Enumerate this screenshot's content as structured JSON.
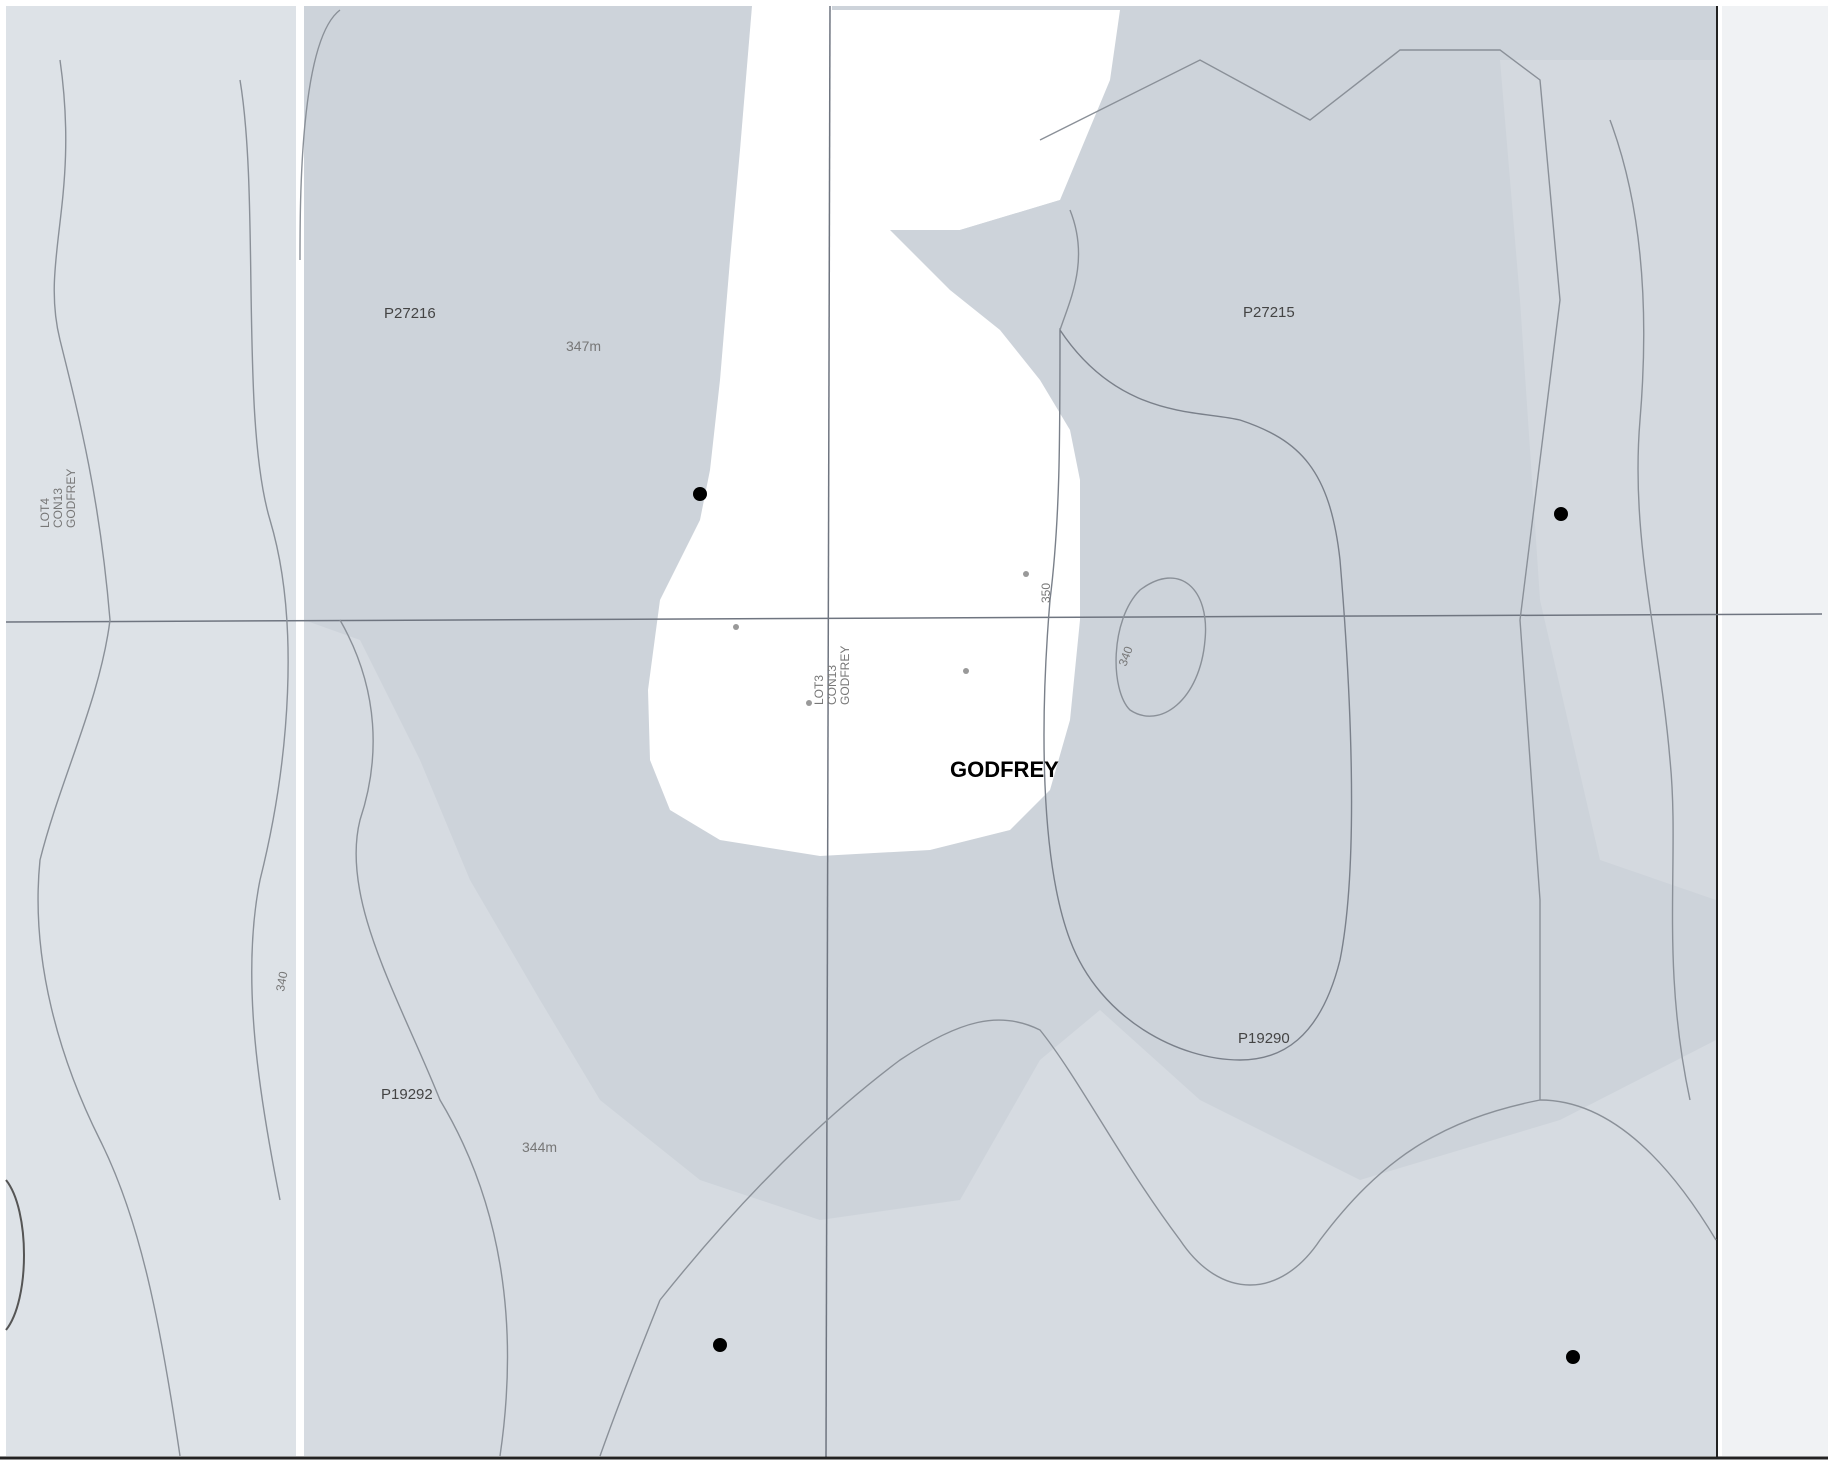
{
  "map": {
    "township_label": "GODFREY",
    "claims": [
      {
        "id": "claim-p27216",
        "label": "P27216"
      },
      {
        "id": "claim-p27215",
        "label": "P27215"
      },
      {
        "id": "claim-p19292",
        "label": "P19292"
      },
      {
        "id": "claim-p19290",
        "label": "P19290"
      }
    ],
    "elevations": [
      {
        "id": "spot-elevation-347m",
        "label": "347m"
      },
      {
        "id": "spot-elevation-344m",
        "label": "344m"
      }
    ],
    "contours": [
      {
        "id": "contour-label-350",
        "label": "350"
      },
      {
        "id": "contour-label-340-a",
        "label": "340"
      },
      {
        "id": "contour-label-340-b",
        "label": "340"
      }
    ],
    "lots": {
      "lot4": [
        "LOT4",
        "CON13",
        "GODFREY"
      ],
      "lot3": [
        "LOT3",
        "CON13",
        "GODFREY"
      ]
    },
    "colors": {
      "grey_fill": "#cdd3da",
      "light_grey": "#e7eaee",
      "white_fill": "#ffffff",
      "line": "#6f7580",
      "contour": "#8a9098",
      "marker": "#000000"
    }
  }
}
